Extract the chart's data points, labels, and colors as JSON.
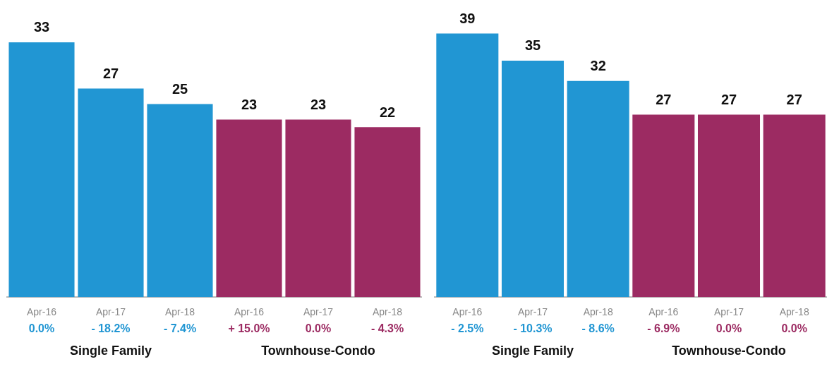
{
  "chart_data": [
    {
      "type": "bar",
      "categories": [
        "Apr-16",
        "Apr-17",
        "Apr-18",
        "Apr-16",
        "Apr-17",
        "Apr-18"
      ],
      "data_labels": true,
      "values": [
        33,
        27,
        25,
        23,
        23,
        22
      ],
      "colors": [
        "#2196d3",
        "#2196d3",
        "#2196d3",
        "#9c2b62",
        "#9c2b62",
        "#9c2b62"
      ],
      "annotations": [
        "0.0%",
        "- 18.2%",
        "- 7.4%",
        "+ 15.0%",
        "0.0%",
        "- 4.3%",
        "Single Family",
        "Townhouse-Condo"
      ]
    },
    {
      "type": "bar",
      "categories": [
        "Apr-16",
        "Apr-17",
        "Apr-18",
        "Apr-16",
        "Apr-17",
        "Apr-18"
      ],
      "data_labels": true,
      "values": [
        39,
        35,
        32,
        27,
        27,
        27
      ],
      "colors": [
        "#2196d3",
        "#2196d3",
        "#2196d3",
        "#9c2b62",
        "#9c2b62",
        "#9c2b62"
      ],
      "annotations": [
        "- 2.5%",
        "- 10.3%",
        "- 8.6%",
        "- 6.9%",
        "0.0%",
        "0.0%",
        "Single Family",
        "Townhouse-Condo"
      ]
    }
  ]
}
